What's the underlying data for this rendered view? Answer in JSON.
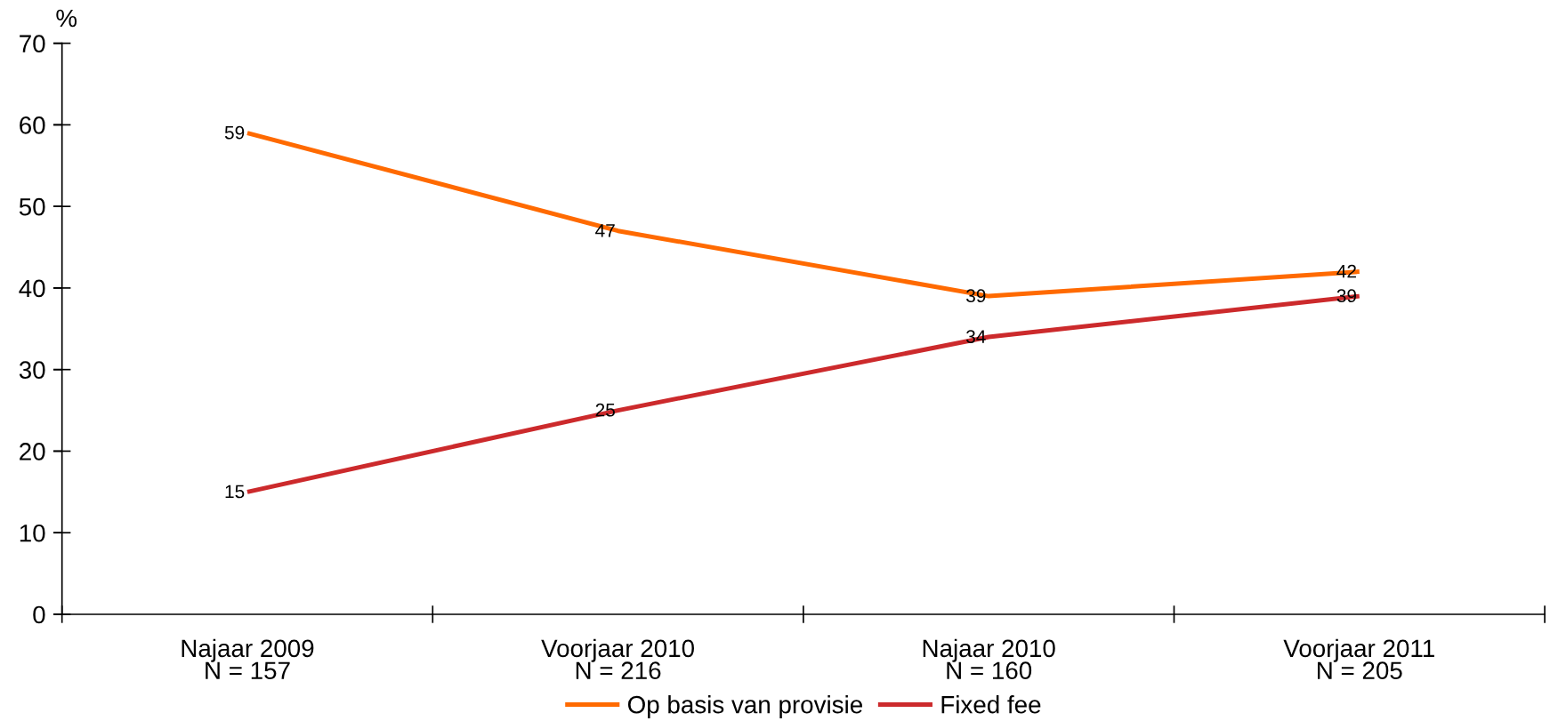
{
  "chart_data": {
    "type": "line",
    "ylabel": "%",
    "categories": [
      "Najaar 2009\nN = 157",
      "Voorjaar 2010\nN = 216",
      "Najaar 2010\nN = 160",
      "Voorjaar 2011\nN = 205"
    ],
    "series": [
      {
        "name": "Op basis van provisie",
        "color": "#ff6a00",
        "values": [
          59,
          47,
          39,
          42
        ]
      },
      {
        "name": "Fixed fee",
        "color": "#cc2a2c",
        "values": [
          15,
          25,
          34,
          39
        ]
      }
    ],
    "ylim": [
      0,
      70
    ],
    "yticks": [
      0,
      10,
      20,
      30,
      40,
      50,
      60,
      70
    ],
    "data_labels": true,
    "grid": false,
    "legend": "bottom",
    "line_style": "solid"
  }
}
